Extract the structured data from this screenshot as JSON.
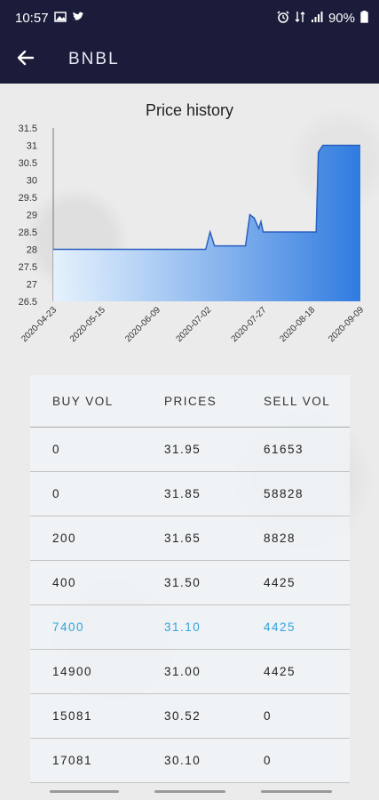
{
  "status_bar": {
    "time": "10:57",
    "battery": "90%"
  },
  "app_bar": {
    "title": "BNBL"
  },
  "chart_data": {
    "type": "area",
    "title": "Price history",
    "xlabel": "",
    "ylabel": "",
    "ylim": [
      26.5,
      31.5
    ],
    "y_ticks": [
      "31.5",
      "31",
      "30.5",
      "30",
      "29.5",
      "29",
      "28.5",
      "28",
      "27.5",
      "27",
      "26.5"
    ],
    "x_ticks": [
      "2020-04-23",
      "2020-05-15",
      "2020-06-09",
      "2020-07-02",
      "2020-07-27",
      "2020-08-18",
      "2020-09-09"
    ],
    "x": [
      "2020-04-23",
      "2020-07-01",
      "2020-07-03",
      "2020-07-05",
      "2020-07-10",
      "2020-07-19",
      "2020-07-21",
      "2020-07-23",
      "2020-07-25",
      "2020-07-26",
      "2020-07-27",
      "2020-08-20",
      "2020-08-21",
      "2020-08-23",
      "2020-09-09"
    ],
    "values": [
      28,
      28,
      28.5,
      28.1,
      28.1,
      28.1,
      29,
      28.9,
      28.6,
      28.8,
      28.5,
      28.5,
      30.8,
      31,
      31
    ],
    "series": [
      {
        "color": "#2f7be0"
      }
    ]
  },
  "order_book": {
    "headers": [
      "BUY VOL",
      "PRICES",
      "SELL VOL"
    ],
    "rows": [
      [
        "0",
        "31.95",
        "61653"
      ],
      [
        "0",
        "31.85",
        "58828"
      ],
      [
        "200",
        "31.65",
        "8828"
      ],
      [
        "400",
        "31.50",
        "4425"
      ],
      [
        "7400",
        "31.10",
        "4425"
      ],
      [
        "14900",
        "31.00",
        "4425"
      ],
      [
        "15081",
        "30.52",
        "0"
      ],
      [
        "17081",
        "30.10",
        "0"
      ]
    ],
    "highlight_row": 4,
    "highlight_color": "#2fa3df"
  }
}
